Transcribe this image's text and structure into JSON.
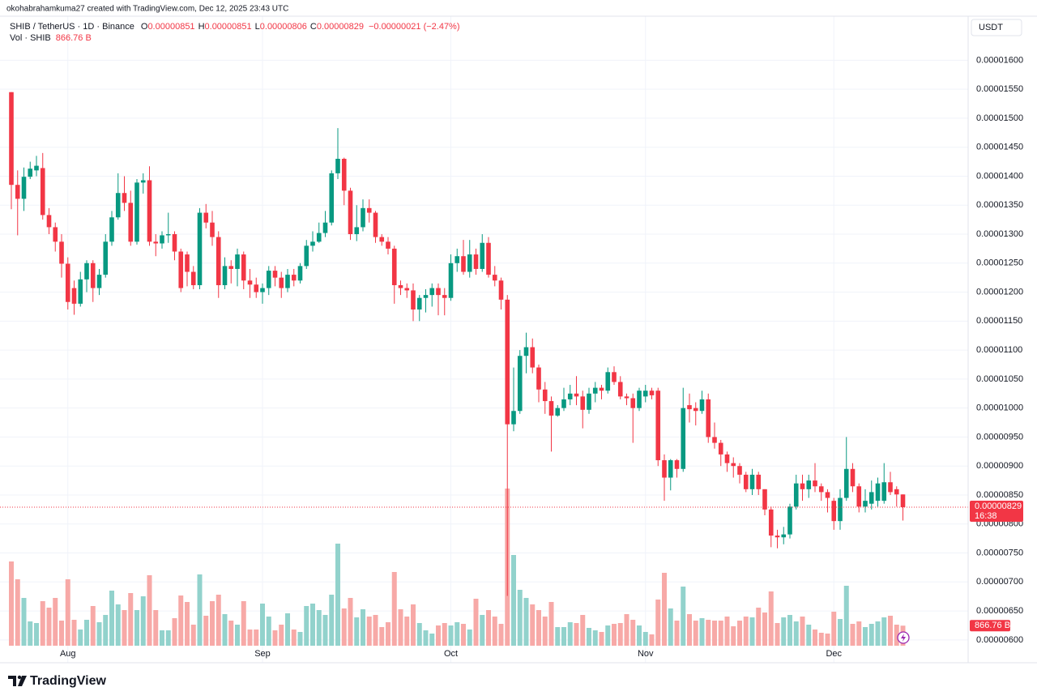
{
  "header": {
    "credit": "okohabrahamkuma27 created with TradingView.com, Dec 12, 2025 23:43 UTC",
    "symbol": "SHIB / TetherUS · 1D · Binance",
    "ohlc": [
      {
        "label": "O",
        "value": "0.00000851"
      },
      {
        "label": "H",
        "value": "0.00000851"
      },
      {
        "label": "L",
        "value": "0.00000806"
      },
      {
        "label": "C",
        "value": "0.00000829"
      }
    ],
    "change": "−0.00000021 (−2.47%)",
    "volume_label": "Vol · SHIB"
  },
  "footer": {
    "brand": "TradingView"
  },
  "chart_data": {
    "type": "candlestick",
    "currency": "USDT",
    "categories": [
      null,
      null,
      null,
      null,
      null,
      null,
      null,
      null,
      null,
      "Aug",
      null,
      null,
      null,
      null,
      null,
      null,
      null,
      null,
      null,
      null,
      null,
      null,
      null,
      null,
      null,
      null,
      null,
      null,
      null,
      null,
      null,
      null,
      null,
      null,
      null,
      null,
      null,
      null,
      null,
      null,
      "Sep",
      null,
      null,
      null,
      null,
      null,
      null,
      null,
      null,
      null,
      null,
      null,
      null,
      null,
      null,
      null,
      null,
      null,
      null,
      null,
      null,
      null,
      null,
      null,
      null,
      null,
      null,
      null,
      null,
      null,
      "Oct",
      null,
      null,
      null,
      null,
      null,
      null,
      null,
      null,
      null,
      null,
      null,
      null,
      null,
      null,
      null,
      null,
      null,
      null,
      null,
      null,
      null,
      null,
      null,
      null,
      null,
      null,
      null,
      null,
      null,
      null,
      "Nov",
      null,
      null,
      null,
      null,
      null,
      null,
      null,
      null,
      null,
      null,
      null,
      null,
      null,
      null,
      null,
      null,
      null,
      null,
      null,
      null,
      null,
      null,
      null,
      null,
      null,
      null,
      null,
      null,
      null,
      "Dec",
      null,
      null,
      null,
      null,
      null,
      null,
      null,
      null,
      null,
      null,
      null
    ],
    "open": [
      1.545e-05,
      1.385e-05,
      1.361e-05,
      1.399e-05,
      1.41e-05,
      1.414e-05,
      1.333e-05,
      1.312e-05,
      1.287e-05,
      1.249e-05,
      1.207e-05,
      1.18e-05,
      1.222e-05,
      1.25e-05,
      1.207e-05,
      1.23e-05,
      1.287e-05,
      1.329e-05,
      1.371e-05,
      1.354e-05,
      1.287e-05,
      1.389e-05,
      1.393e-05,
      1.287e-05,
      1.284e-05,
      1.298e-05,
      1.3e-05,
      1.27e-05,
      1.265e-05,
      1.235e-05,
      1.212e-05,
      1.337e-05,
      1.32e-05,
      1.295e-05,
      1.212e-05,
      1.245e-05,
      1.24e-05,
      1.265e-05,
      1.22e-05,
      1.213e-05,
      1.2e-05,
      1.207e-05,
      1.237e-05,
      1.225e-05,
      1.207e-05,
      1.23e-05,
      1.22e-05,
      1.245e-05,
      1.28e-05,
      1.287e-05,
      1.302e-05,
      1.32e-05,
      1.405e-05,
      1.43e-05,
      1.375e-05,
      1.3e-05,
      1.312e-05,
      1.345e-05,
      1.337e-05,
      1.295e-05,
      1.287e-05,
      1.275e-05,
      1.212e-05,
      1.207e-05,
      1.203e-05,
      1.17e-05,
      1.19e-05,
      1.195e-05,
      1.207e-05,
      1.195e-05,
      1.19e-05,
      1.25e-05,
      1.262e-05,
      1.235e-05,
      1.265e-05,
      1.24e-05,
      1.285e-05,
      1.23e-05,
      1.22e-05,
      1.187e-05,
      9.72e-06,
      9.95e-06,
      1.09e-05,
      1.105e-05,
      1.07e-05,
      1.032e-05,
      1.012e-05,
      9.87e-06,
      1e-05,
      1.015e-05,
      1.025e-05,
      1.02e-05,
      9.97e-06,
      1.025e-05,
      1.035e-05,
      1.03e-05,
      1.062e-05,
      1.045e-05,
      1.02e-05,
      1.017e-05,
      1e-05,
      1.02e-05,
      1.03e-05,
      1.03e-05,
      9.1e-06,
      8.8e-06,
      9.1e-06,
      8.95e-06,
      1.005e-05,
      1e-05,
      9.95e-06,
      1.015e-05,
      9.5e-06,
      9.4e-06,
      9.2e-06,
      9.05e-06,
      9e-06,
      8.85e-06,
      8.6e-06,
      8.85e-06,
      8.6e-06,
      8.25e-06,
      7.8e-06,
      7.77e-06,
      7.82e-06,
      8.3e-06,
      8.7e-06,
      8.6e-06,
      8.75e-06,
      8.65e-06,
      8.55e-06,
      8.4e-06,
      8.05e-06,
      8.45e-06,
      8.95e-06,
      8.65e-06,
      8.3e-06,
      8.35e-06,
      8.4e-06,
      8.4e-06,
      8.72e-06,
      8.6e-06,
      8.51e-06
    ],
    "high": [
      1.545e-05,
      1.41e-05,
      1.415e-05,
      1.425e-05,
      1.435e-05,
      1.44e-05,
      1.345e-05,
      1.32e-05,
      1.3e-05,
      1.26e-05,
      1.22e-05,
      1.235e-05,
      1.255e-05,
      1.255e-05,
      1.24e-05,
      1.3e-05,
      1.34e-05,
      1.405e-05,
      1.4e-05,
      1.375e-05,
      1.395e-05,
      1.405e-05,
      1.417e-05,
      1.3e-05,
      1.305e-05,
      1.337e-05,
      1.305e-05,
      1.275e-05,
      1.27e-05,
      1.245e-05,
      1.345e-05,
      1.352e-05,
      1.34e-05,
      1.305e-05,
      1.26e-05,
      1.255e-05,
      1.275e-05,
      1.27e-05,
      1.24e-05,
      1.225e-05,
      1.215e-05,
      1.245e-05,
      1.245e-05,
      1.235e-05,
      1.24e-05,
      1.24e-05,
      1.25e-05,
      1.29e-05,
      1.305e-05,
      1.32e-05,
      1.34e-05,
      1.41e-05,
      1.483e-05,
      1.432e-05,
      1.38e-05,
      1.35e-05,
      1.36e-05,
      1.36e-05,
      1.34e-05,
      1.3e-05,
      1.295e-05,
      1.28e-05,
      1.22e-05,
      1.215e-05,
      1.215e-05,
      1.195e-05,
      1.205e-05,
      1.215e-05,
      1.215e-05,
      1.207e-05,
      1.265e-05,
      1.275e-05,
      1.29e-05,
      1.29e-05,
      1.275e-05,
      1.3e-05,
      1.295e-05,
      1.245e-05,
      1.225e-05,
      1.195e-05,
      1.07e-05,
      1.1e-05,
      1.13e-05,
      1.12e-05,
      1.075e-05,
      1.045e-05,
      1.02e-05,
      1.005e-05,
      1.035e-05,
      1.04e-05,
      1.055e-05,
      1.03e-05,
      1.035e-05,
      1.045e-05,
      1.04e-05,
      1.07e-05,
      1.072e-05,
      1.055e-05,
      1.025e-05,
      1.025e-05,
      1.035e-05,
      1.04e-05,
      1.035e-05,
      1.035e-05,
      9.2e-06,
      9.12e-06,
      9.12e-06,
      1.035e-05,
      1.025e-05,
      1.01e-05,
      1.03e-05,
      1.025e-05,
      9.75e-06,
      9.45e-06,
      9.25e-06,
      9.15e-06,
      9.05e-06,
      8.9e-06,
      8.95e-06,
      8.9e-06,
      8.6e-06,
      8.3e-06,
      7.9e-06,
      7.95e-06,
      8.35e-06,
      8.85e-06,
      8.85e-06,
      8.85e-06,
      9.05e-06,
      8.7e-06,
      8.6e-06,
      8.45e-06,
      8.6e-06,
      9.5e-06,
      9.05e-06,
      8.7e-06,
      8.6e-06,
      8.75e-06,
      8.8e-06,
      9.05e-06,
      8.9e-06,
      8.65e-06,
      8.51e-06
    ],
    "low": [
      1.343e-05,
      1.298e-05,
      1.34e-05,
      1.395e-05,
      1.4e-05,
      1.325e-05,
      1.3e-05,
      1.27e-05,
      1.225e-05,
      1.17e-05,
      1.161e-05,
      1.175e-05,
      1.2e-05,
      1.183e-05,
      1.195e-05,
      1.225e-05,
      1.28e-05,
      1.325e-05,
      1.34e-05,
      1.28e-05,
      1.282e-05,
      1.37e-05,
      1.28e-05,
      1.262e-05,
      1.275e-05,
      1.285e-05,
      1.255e-05,
      1.2e-05,
      1.21e-05,
      1.205e-05,
      1.205e-05,
      1.31e-05,
      1.28e-05,
      1.19e-05,
      1.205e-05,
      1.215e-05,
      1.21e-05,
      1.205e-05,
      1.19e-05,
      1.19e-05,
      1.18e-05,
      1.195e-05,
      1.21e-05,
      1.19e-05,
      1.2e-05,
      1.21e-05,
      1.215e-05,
      1.24e-05,
      1.27e-05,
      1.285e-05,
      1.295e-05,
      1.315e-05,
      1.395e-05,
      1.35e-05,
      1.29e-05,
      1.288e-05,
      1.305e-05,
      1.32e-05,
      1.285e-05,
      1.28e-05,
      1.265e-05,
      1.18e-05,
      1.195e-05,
      1.19e-05,
      1.15e-05,
      1.15e-05,
      1.165e-05,
      1.175e-05,
      1.16e-05,
      1.16e-05,
      1.185e-05,
      1.235e-05,
      1.23e-05,
      1.225e-05,
      1.23e-05,
      1.235e-05,
      1.225e-05,
      1.21e-05,
      1.17e-05,
      6.76e-06,
      9.6e-06,
      9.9e-06,
      1.06e-05,
      1.06e-05,
      1.01e-05,
      9.9e-06,
      9.25e-06,
      9.85e-06,
      9.95e-06,
      1.005e-05,
      1.005e-05,
      9.65e-06,
      9.9e-06,
      1.01e-05,
      1.015e-05,
      1.025e-05,
      1.04e-05,
      1.015e-05,
      1.005e-05,
      9.4e-06,
      9.95e-06,
      1.01e-05,
      1.015e-05,
      9e-06,
      8.4e-06,
      8.58e-06,
      8.8e-06,
      8.9e-06,
      9.75e-06,
      9.7e-06,
      9.9e-06,
      9.4e-06,
      9.3e-06,
      9e-06,
      8.9e-06,
      8.8e-06,
      8.7e-06,
      8.55e-06,
      8.5e-06,
      8.5e-06,
      8.15e-06,
      7.6e-06,
      7.58e-06,
      7.65e-06,
      7.75e-06,
      8.25e-06,
      8.4e-06,
      8.45e-06,
      8.55e-06,
      8.4e-06,
      8.2e-06,
      7.9e-06,
      7.9e-06,
      8.4e-06,
      8.55e-06,
      8.2e-06,
      8.2e-06,
      8.25e-06,
      8.3e-06,
      8.35e-06,
      8.5e-06,
      8.3e-06,
      8.06e-06
    ],
    "close": [
      1.385e-05,
      1.361e-05,
      1.399e-05,
      1.413e-05,
      1.418e-05,
      1.333e-05,
      1.312e-05,
      1.287e-05,
      1.249e-05,
      1.183e-05,
      1.18e-05,
      1.222e-05,
      1.25e-05,
      1.207e-05,
      1.23e-05,
      1.287e-05,
      1.329e-05,
      1.371e-05,
      1.354e-05,
      1.287e-05,
      1.389e-05,
      1.393e-05,
      1.287e-05,
      1.284e-05,
      1.298e-05,
      1.3e-05,
      1.27e-05,
      1.207e-05,
      1.235e-05,
      1.212e-05,
      1.337e-05,
      1.32e-05,
      1.295e-05,
      1.212e-05,
      1.245e-05,
      1.24e-05,
      1.265e-05,
      1.22e-05,
      1.213e-05,
      1.2e-05,
      1.207e-05,
      1.237e-05,
      1.225e-05,
      1.207e-05,
      1.23e-05,
      1.22e-05,
      1.245e-05,
      1.28e-05,
      1.287e-05,
      1.302e-05,
      1.32e-05,
      1.405e-05,
      1.43e-05,
      1.375e-05,
      1.3e-05,
      1.312e-05,
      1.345e-05,
      1.337e-05,
      1.295e-05,
      1.287e-05,
      1.275e-05,
      1.212e-05,
      1.207e-05,
      1.203e-05,
      1.17e-05,
      1.19e-05,
      1.195e-05,
      1.207e-05,
      1.195e-05,
      1.19e-05,
      1.25e-05,
      1.262e-05,
      1.235e-05,
      1.265e-05,
      1.24e-05,
      1.285e-05,
      1.23e-05,
      1.22e-05,
      1.187e-05,
      9.72e-06,
      9.95e-06,
      1.09e-05,
      1.105e-05,
      1.07e-05,
      1.032e-05,
      1.012e-05,
      9.87e-06,
      1e-05,
      1.015e-05,
      1.025e-05,
      1.02e-05,
      9.97e-06,
      1.025e-05,
      1.035e-05,
      1.03e-05,
      1.062e-05,
      1.045e-05,
      1.02e-05,
      1.017e-05,
      1e-05,
      1.03e-05,
      1.03e-05,
      1.022e-05,
      9.1e-06,
      8.8e-06,
      9.1e-06,
      8.95e-06,
      1e-05,
      9.98e-06,
      9.95e-06,
      1.015e-05,
      9.5e-06,
      9.4e-06,
      9.2e-06,
      9.05e-06,
      9e-06,
      8.85e-06,
      8.6e-06,
      8.85e-06,
      8.6e-06,
      8.25e-06,
      7.8e-06,
      7.77e-06,
      7.82e-06,
      8.3e-06,
      8.7e-06,
      8.6e-06,
      8.75e-06,
      8.65e-06,
      8.55e-06,
      8.45e-06,
      8.05e-06,
      8.45e-06,
      8.95e-06,
      8.65e-06,
      8.3e-06,
      8.4e-06,
      8.55e-06,
      8.7e-06,
      8.72e-06,
      8.55e-06,
      8.51e-06,
      8.29e-06
    ],
    "volume": [
      3640,
      2870,
      2065,
      1050,
      980,
      1925,
      1645,
      2065,
      1085,
      2870,
      1120,
      700,
      1120,
      1715,
      1015,
      1330,
      2380,
      1785,
      1540,
      2275,
      1540,
      2135,
      3045,
      1540,
      665,
      665,
      1190,
      2170,
      1890,
      910,
      3080,
      1295,
      1925,
      2205,
      1365,
      1085,
      910,
      1925,
      700,
      700,
      1820,
      1260,
      665,
      910,
      1400,
      700,
      595,
      1715,
      1820,
      1540,
      1330,
      2205,
      4410,
      1610,
      2065,
      1225,
      1575,
      1260,
      1330,
      805,
      1015,
      3185,
      1575,
      1260,
      1785,
      980,
      665,
      525,
      875,
      980,
      875,
      1015,
      945,
      700,
      2030,
      1330,
      1540,
      1260,
      945,
      6790,
      3920,
      2415,
      2065,
      1785,
      1540,
      1260,
      1890,
      805,
      805,
      1015,
      980,
      1330,
      770,
      665,
      595,
      875,
      945,
      980,
      1365,
      1120,
      875,
      595,
      490,
      1995,
      3150,
      1610,
      1085,
      2555,
      1365,
      1085,
      1190,
      1120,
      1085,
      1085,
      1260,
      840,
      1085,
      1260,
      1225,
      1645,
      1435,
      2345,
      980,
      1225,
      1330,
      1050,
      1260,
      910,
      700,
      560,
      525,
      1470,
      1155,
      2590,
      945,
      1050,
      805,
      945,
      1050,
      1225,
      1295,
      910,
      866.76
    ],
    "up_color": "#089981",
    "down_color": "#f23645",
    "volume_up_color": "#92d2cc",
    "volume_down_color": "#f7a9a7",
    "ylim": [
      5.9e-06,
      1.676e-05
    ],
    "yticks": [
      {
        "value": 1.6e-05,
        "label": "0.00001600"
      },
      {
        "value": 1.55e-05,
        "label": "0.00001550"
      },
      {
        "value": 1.5e-05,
        "label": "0.00001500"
      },
      {
        "value": 1.45e-05,
        "label": "0.00001450"
      },
      {
        "value": 1.4e-05,
        "label": "0.00001400"
      },
      {
        "value": 1.35e-05,
        "label": "0.00001350"
      },
      {
        "value": 1.3e-05,
        "label": "0.00001300"
      },
      {
        "value": 1.25e-05,
        "label": "0.00001250"
      },
      {
        "value": 1.2e-05,
        "label": "0.00001200"
      },
      {
        "value": 1.15e-05,
        "label": "0.00001150"
      },
      {
        "value": 1.1e-05,
        "label": "0.00001100"
      },
      {
        "value": 1.05e-05,
        "label": "0.00001050"
      },
      {
        "value": 1e-05,
        "label": "0.00001000"
      },
      {
        "value": 9.5e-06,
        "label": "0.00000950"
      },
      {
        "value": 9e-06,
        "label": "0.00000900"
      },
      {
        "value": 8.5e-06,
        "label": "0.00000850"
      },
      {
        "value": 8e-06,
        "label": "0.00000800"
      },
      {
        "value": 7.5e-06,
        "label": "0.00000750"
      },
      {
        "value": 7e-06,
        "label": "0.00000700"
      },
      {
        "value": 6.5e-06,
        "label": "0.00000650"
      },
      {
        "value": 6e-06,
        "label": "0.00000600"
      }
    ],
    "grid": true,
    "last_price": {
      "value": 8.29e-06,
      "label": "0.00000829"
    },
    "countdown": "16:38",
    "last_volume": {
      "value": 866.76,
      "label": "866.76 B"
    }
  }
}
